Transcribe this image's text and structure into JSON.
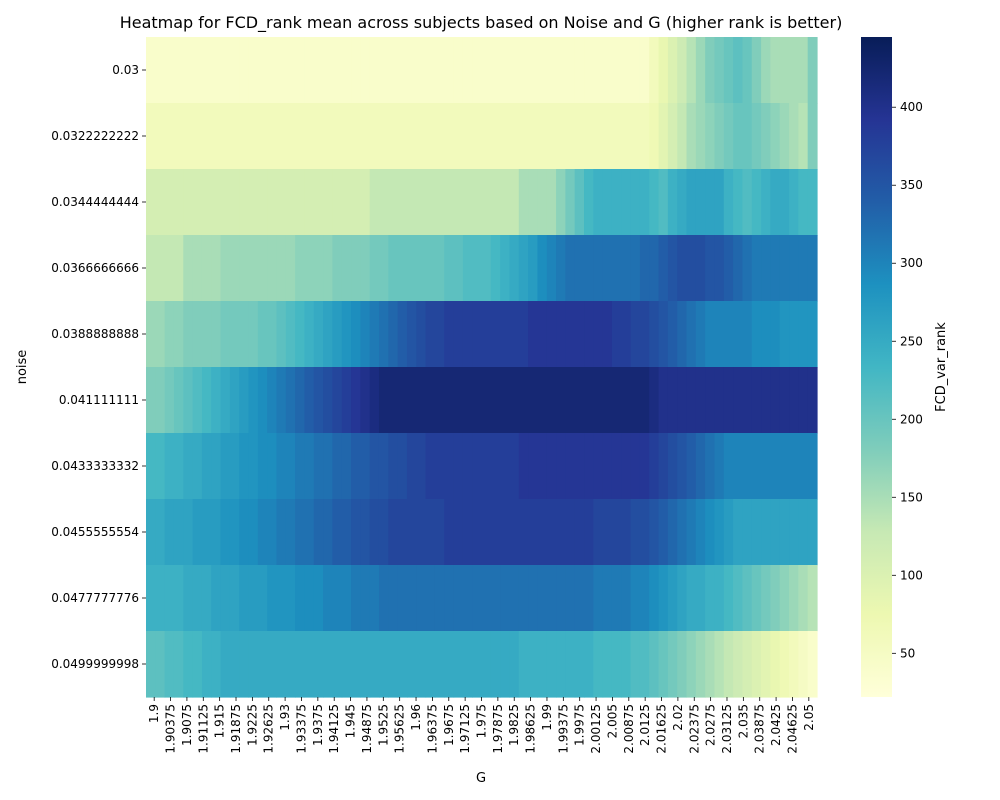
{
  "chart_data": {
    "type": "heatmap",
    "title": "Heatmap for FCD_rank mean across subjects based on Noise and G (higher rank is better)",
    "xlabel": "G",
    "ylabel": "noise",
    "colorbar_label": "FCD_var_rank",
    "colormap": "YlGnBu",
    "vmin": 22,
    "vmax": 445,
    "colorbar_ticks": [
      50,
      100,
      150,
      200,
      250,
      300,
      350,
      400
    ],
    "x_tick_labels": [
      "1.9",
      "1.90375",
      "1.9075",
      "1.91125",
      "1.915",
      "1.91875",
      "1.9225",
      "1.92625",
      "1.93",
      "1.93375",
      "1.9375",
      "1.94125",
      "1.945",
      "1.94875",
      "1.9525",
      "1.95625",
      "1.96",
      "1.96375",
      "1.9675",
      "1.97125",
      "1.975",
      "1.97875",
      "1.9825",
      "1.98625",
      "1.99",
      "1.99375",
      "1.9975",
      "2.00125",
      "2.005",
      "2.00875",
      "2.0125",
      "2.01625",
      "2.02",
      "2.02375",
      "2.0275",
      "2.03125",
      "2.035",
      "2.03875",
      "2.0425",
      "2.04625",
      "2.05"
    ],
    "y_tick_labels": [
      "0.03",
      "0.0322222222",
      "0.0344444444",
      "0.0366666666",
      "0.0388888888",
      "0.041111111",
      "0.0433333332",
      "0.0455555554",
      "0.0477777776",
      "0.0499999998"
    ],
    "n_cols": 72,
    "values": [
      [
        40,
        40,
        40,
        40,
        40,
        40,
        40,
        40,
        40,
        40,
        40,
        40,
        40,
        40,
        40,
        40,
        40,
        40,
        40,
        40,
        40,
        40,
        40,
        40,
        40,
        40,
        40,
        40,
        40,
        40,
        40,
        40,
        40,
        40,
        40,
        40,
        40,
        40,
        40,
        40,
        40,
        40,
        40,
        40,
        40,
        40,
        40,
        40,
        40,
        40,
        40,
        40,
        40,
        40,
        60,
        80,
        100,
        120,
        140,
        160,
        180,
        190,
        200,
        210,
        200,
        180,
        160,
        150,
        150,
        150,
        150,
        180
      ],
      [
        60,
        60,
        60,
        60,
        60,
        60,
        60,
        60,
        60,
        60,
        60,
        60,
        60,
        60,
        60,
        60,
        60,
        60,
        60,
        60,
        60,
        60,
        60,
        60,
        60,
        60,
        60,
        60,
        60,
        60,
        60,
        60,
        60,
        60,
        60,
        60,
        60,
        60,
        60,
        60,
        60,
        60,
        60,
        60,
        60,
        60,
        60,
        60,
        60,
        60,
        60,
        60,
        60,
        60,
        70,
        90,
        110,
        130,
        150,
        160,
        170,
        180,
        190,
        200,
        200,
        190,
        180,
        170,
        160,
        150,
        140,
        180
      ],
      [
        110,
        110,
        110,
        110,
        110,
        110,
        110,
        110,
        110,
        110,
        110,
        110,
        110,
        110,
        110,
        110,
        110,
        110,
        110,
        110,
        110,
        110,
        110,
        110,
        130,
        130,
        130,
        130,
        130,
        130,
        130,
        130,
        130,
        130,
        130,
        130,
        130,
        130,
        130,
        130,
        150,
        150,
        150,
        150,
        170,
        190,
        210,
        230,
        240,
        240,
        240,
        240,
        240,
        240,
        230,
        220,
        240,
        250,
        260,
        260,
        260,
        260,
        240,
        230,
        220,
        230,
        240,
        250,
        250,
        240,
        230,
        230
      ],
      [
        130,
        130,
        130,
        130,
        150,
        150,
        150,
        150,
        160,
        160,
        160,
        160,
        160,
        160,
        160,
        160,
        170,
        170,
        170,
        170,
        180,
        180,
        180,
        180,
        190,
        190,
        200,
        200,
        200,
        200,
        200,
        200,
        210,
        210,
        220,
        220,
        220,
        230,
        240,
        250,
        260,
        270,
        290,
        300,
        310,
        320,
        320,
        320,
        320,
        320,
        320,
        320,
        320,
        330,
        330,
        340,
        350,
        360,
        360,
        360,
        350,
        350,
        340,
        330,
        320,
        310,
        310,
        310,
        310,
        310,
        310,
        310
      ],
      [
        160,
        160,
        170,
        170,
        180,
        180,
        180,
        180,
        190,
        190,
        190,
        190,
        200,
        200,
        210,
        220,
        230,
        240,
        250,
        260,
        270,
        280,
        290,
        300,
        310,
        320,
        330,
        340,
        350,
        360,
        370,
        370,
        380,
        380,
        380,
        380,
        380,
        380,
        380,
        380,
        380,
        390,
        390,
        390,
        390,
        390,
        390,
        390,
        390,
        390,
        380,
        380,
        370,
        370,
        360,
        350,
        340,
        330,
        320,
        310,
        300,
        300,
        300,
        300,
        300,
        290,
        290,
        290,
        280,
        280,
        280,
        280
      ],
      [
        180,
        180,
        190,
        200,
        210,
        220,
        230,
        240,
        250,
        260,
        270,
        280,
        290,
        300,
        310,
        320,
        330,
        340,
        350,
        360,
        370,
        380,
        390,
        400,
        410,
        420,
        420,
        420,
        420,
        420,
        420,
        420,
        420,
        420,
        420,
        420,
        420,
        420,
        420,
        420,
        420,
        420,
        420,
        420,
        420,
        420,
        420,
        420,
        420,
        420,
        420,
        420,
        420,
        420,
        410,
        400,
        400,
        400,
        400,
        400,
        400,
        400,
        400,
        400,
        400,
        400,
        400,
        400,
        400,
        400,
        400,
        400
      ],
      [
        230,
        230,
        240,
        240,
        250,
        250,
        260,
        260,
        270,
        270,
        280,
        280,
        290,
        290,
        300,
        300,
        310,
        310,
        320,
        320,
        330,
        330,
        340,
        340,
        350,
        350,
        360,
        360,
        370,
        370,
        380,
        380,
        380,
        380,
        380,
        380,
        380,
        380,
        380,
        380,
        390,
        390,
        390,
        390,
        390,
        390,
        390,
        390,
        390,
        390,
        390,
        390,
        390,
        390,
        380,
        370,
        360,
        350,
        340,
        330,
        320,
        310,
        300,
        300,
        300,
        300,
        300,
        300,
        300,
        300,
        300,
        300
      ],
      [
        250,
        250,
        260,
        260,
        260,
        270,
        270,
        270,
        280,
        280,
        290,
        290,
        300,
        300,
        310,
        310,
        320,
        320,
        330,
        330,
        340,
        340,
        350,
        350,
        360,
        360,
        370,
        370,
        370,
        370,
        370,
        370,
        380,
        380,
        380,
        380,
        380,
        380,
        380,
        380,
        380,
        380,
        380,
        380,
        380,
        380,
        380,
        380,
        370,
        370,
        370,
        370,
        360,
        360,
        350,
        340,
        330,
        320,
        310,
        300,
        290,
        280,
        270,
        260,
        260,
        260,
        260,
        260,
        260,
        260,
        260,
        260
      ],
      [
        240,
        240,
        240,
        240,
        250,
        250,
        250,
        260,
        260,
        260,
        270,
        270,
        270,
        280,
        280,
        280,
        290,
        290,
        290,
        300,
        300,
        300,
        310,
        310,
        310,
        320,
        320,
        320,
        320,
        320,
        320,
        320,
        320,
        320,
        320,
        320,
        320,
        320,
        320,
        320,
        320,
        320,
        320,
        320,
        320,
        320,
        320,
        320,
        310,
        310,
        310,
        310,
        300,
        300,
        290,
        280,
        270,
        260,
        250,
        250,
        240,
        240,
        230,
        220,
        210,
        200,
        190,
        180,
        170,
        160,
        150,
        140
      ],
      [
        210,
        210,
        220,
        220,
        230,
        230,
        240,
        240,
        250,
        250,
        250,
        250,
        250,
        250,
        250,
        250,
        250,
        250,
        250,
        250,
        250,
        250,
        250,
        250,
        250,
        250,
        250,
        250,
        250,
        250,
        250,
        250,
        250,
        250,
        250,
        250,
        250,
        250,
        250,
        250,
        240,
        240,
        240,
        240,
        240,
        240,
        240,
        240,
        230,
        230,
        230,
        230,
        220,
        220,
        210,
        200,
        190,
        180,
        170,
        160,
        150,
        140,
        130,
        120,
        110,
        100,
        90,
        80,
        70,
        60,
        50,
        40
      ]
    ]
  }
}
